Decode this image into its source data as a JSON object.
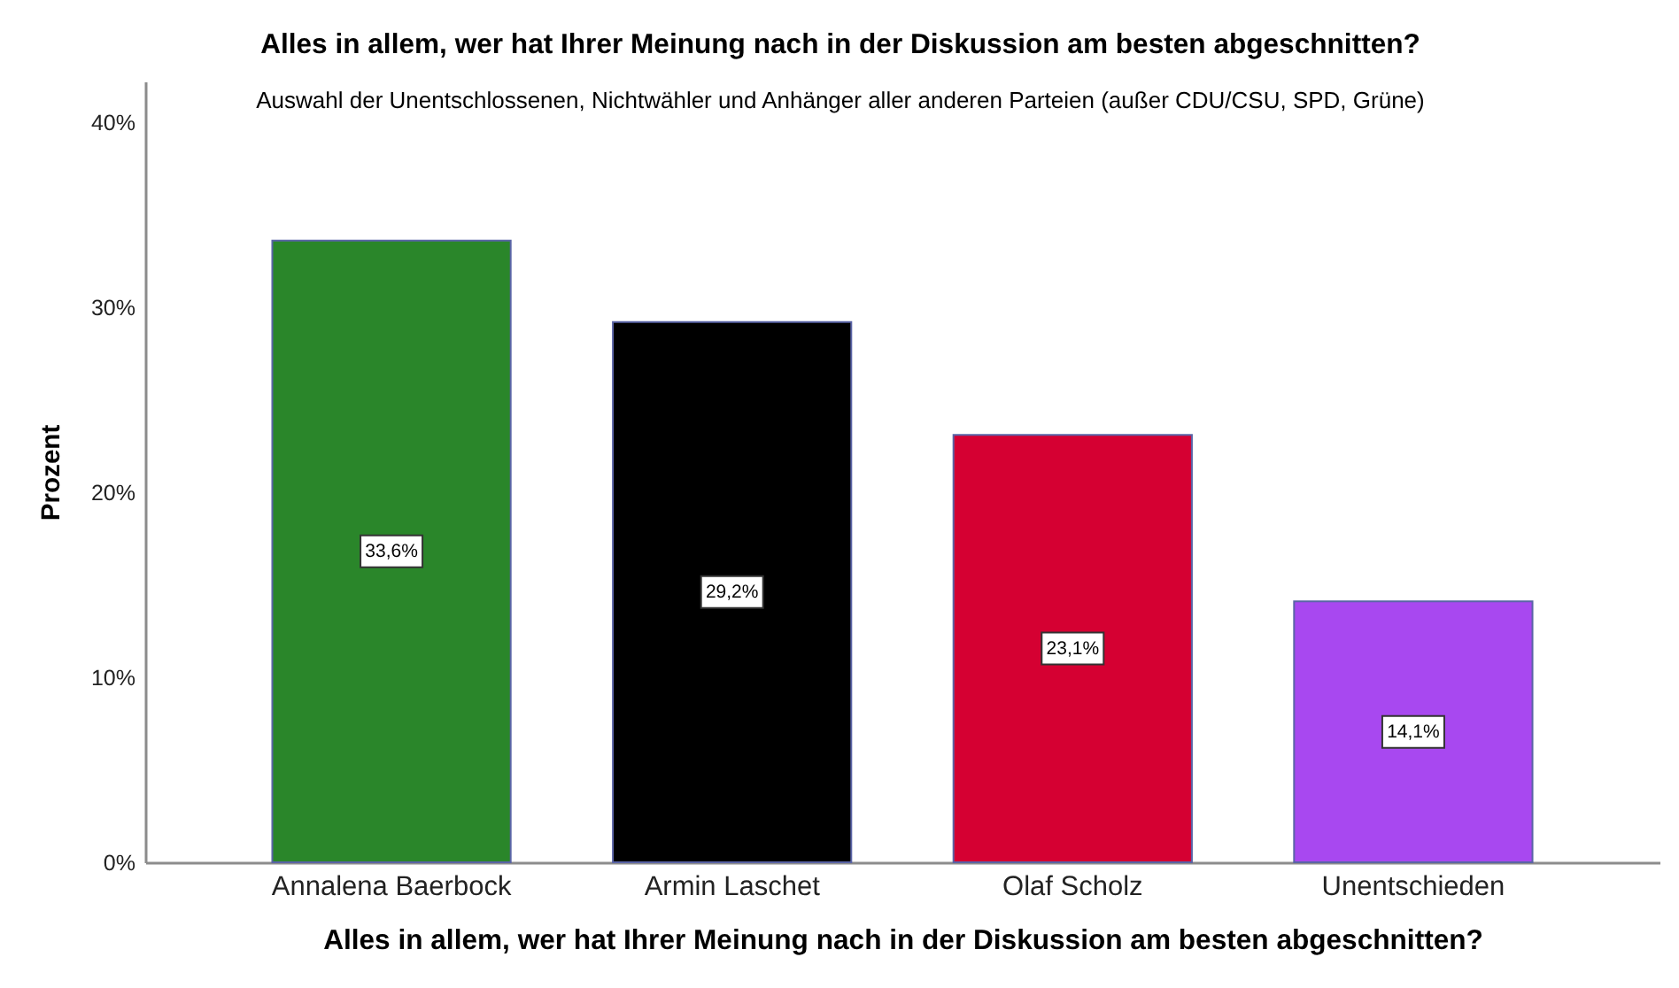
{
  "chart_data": {
    "type": "bar",
    "title": "Alles in allem, wer hat Ihrer Meinung nach in der Diskussion am besten abgeschnitten?",
    "subtitle": "Auswahl der Unentschlossenen, Nichtwähler und Anhänger aller anderen Parteien (außer CDU/CSU, SPD, Grüne)",
    "xlabel": "Alles in allem, wer hat Ihrer Meinung nach in der Diskussion am besten abgeschnitten?",
    "ylabel": "Prozent",
    "categories": [
      "Annalena Baerbock",
      "Armin Laschet",
      "Olaf Scholz",
      "Unentschieden"
    ],
    "values": [
      33.6,
      29.2,
      23.1,
      14.1
    ],
    "colors": [
      "#2a862a",
      "#000000",
      "#d50032",
      "#a848f0"
    ],
    "value_labels": [
      "33,6%",
      "29,2%",
      "23,1%",
      "14,1%"
    ],
    "ylim": [
      0,
      42.2
    ],
    "yticks": [
      {
        "value": 0,
        "label": "0%"
      },
      {
        "value": 10,
        "label": "10%"
      },
      {
        "value": 20,
        "label": "20%"
      },
      {
        "value": 30,
        "label": "30%"
      },
      {
        "value": 40,
        "label": "40%"
      }
    ]
  }
}
